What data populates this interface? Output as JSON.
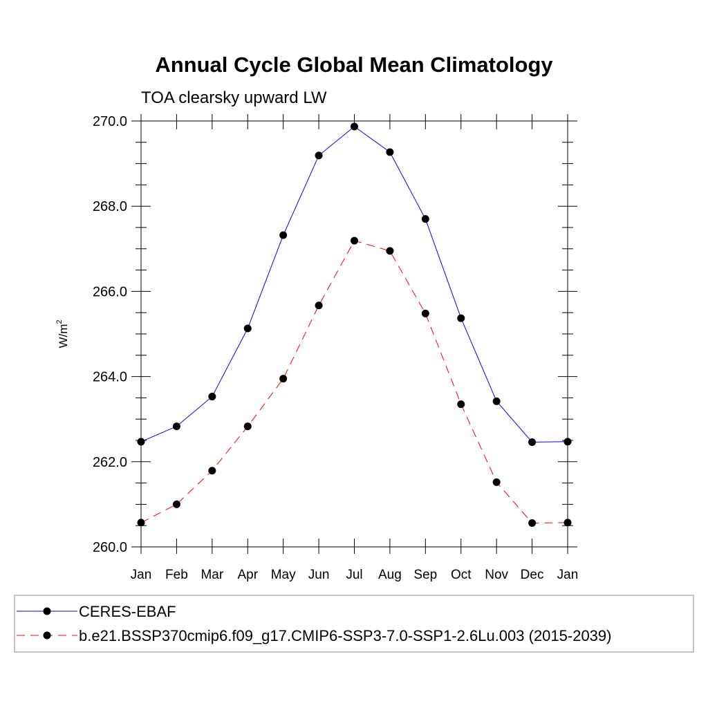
{
  "chart_data": {
    "type": "line",
    "title": "Annual Cycle Global Mean Climatology",
    "subtitle": "TOA clearsky upward LW",
    "ylabel": "W/m",
    "ylabel_superscript": "2",
    "xlabel": "",
    "categories": [
      "Jan",
      "Feb",
      "Mar",
      "Apr",
      "May",
      "Jun",
      "Jul",
      "Aug",
      "Sep",
      "Oct",
      "Nov",
      "Dec",
      "Jan"
    ],
    "ylim": [
      260.0,
      270.0
    ],
    "yticks": [
      "260.0",
      "262.0",
      "264.0",
      "266.0",
      "268.0",
      "270.0"
    ],
    "grid": false,
    "legend_position": "bottom",
    "series": [
      {
        "name": "CERES-EBAF",
        "color": "#0000ff",
        "line_style": "solid",
        "marker": "filled-circle",
        "values": [
          262.47,
          262.83,
          263.53,
          265.13,
          267.32,
          269.19,
          269.87,
          269.27,
          267.7,
          265.37,
          263.42,
          262.46,
          262.47
        ]
      },
      {
        "name": "b.e21.BSSP370cmip6.f09_g17.CMIP6-SSP3-7.0-SSP1-2.6Lu.003 (2015-2039)",
        "color": "#ff0000",
        "line_style": "dashed",
        "marker": "filled-circle",
        "values": [
          260.57,
          261.0,
          261.79,
          262.83,
          263.95,
          265.67,
          267.19,
          266.95,
          265.48,
          263.35,
          261.52,
          260.56,
          260.57
        ]
      }
    ]
  }
}
